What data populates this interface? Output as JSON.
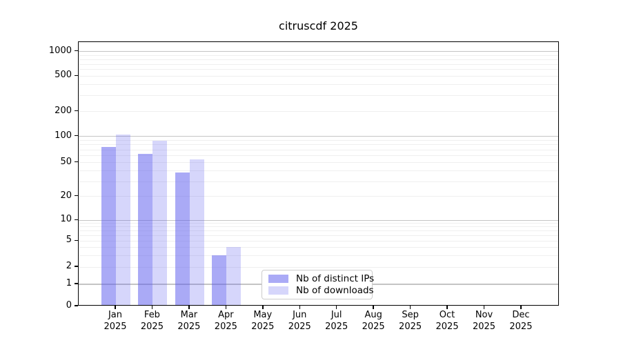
{
  "figure": {
    "title": "citruscdf 2025"
  },
  "chart_data": {
    "type": "bar",
    "title": "citruscdf 2025",
    "categories": [
      "Jan 2025",
      "Feb 2025",
      "Mar 2025",
      "Apr 2025",
      "May 2025",
      "Jun 2025",
      "Jul 2025",
      "Aug 2025",
      "Sep 2025",
      "Oct 2025",
      "Nov 2025",
      "Dec 2025"
    ],
    "series": [
      {
        "name": "Nb of distinct IPs",
        "color": "#5555ee",
        "opacity": 0.5,
        "values": [
          75,
          63,
          38,
          3,
          0,
          0,
          0,
          0,
          0,
          0,
          0,
          0
        ]
      },
      {
        "name": "Nb of downloads",
        "color": "#5555ee",
        "opacity": 0.24,
        "values": [
          105,
          88,
          54,
          4,
          0,
          0,
          0,
          0,
          0,
          0,
          0,
          0
        ]
      }
    ],
    "xlabel": "",
    "ylabel": "",
    "y_axis": {
      "scale": "symlog",
      "ticks": [
        0,
        1,
        2,
        5,
        10,
        20,
        50,
        100,
        200,
        500,
        1000
      ]
    },
    "grid": {
      "major_values": [
        1,
        10,
        100,
        1000
      ],
      "minor_values": [
        2,
        3,
        4,
        5,
        6,
        7,
        8,
        9,
        20,
        30,
        40,
        50,
        60,
        70,
        80,
        90,
        200,
        300,
        400,
        500,
        600,
        700,
        800,
        900
      ]
    },
    "legend_position": "inside lower center"
  },
  "legend": {
    "items": [
      {
        "label": "Nb of distinct IPs"
      },
      {
        "label": "Nb of downloads"
      }
    ]
  },
  "colors": {
    "bar_base": "#5555ee",
    "major_grid": "#c4c4c4",
    "minor_grid": "#efefef",
    "spine": "#000000",
    "text": "#000000",
    "legend_border": "#cccccc",
    "legend_bg": "#ffffff"
  }
}
